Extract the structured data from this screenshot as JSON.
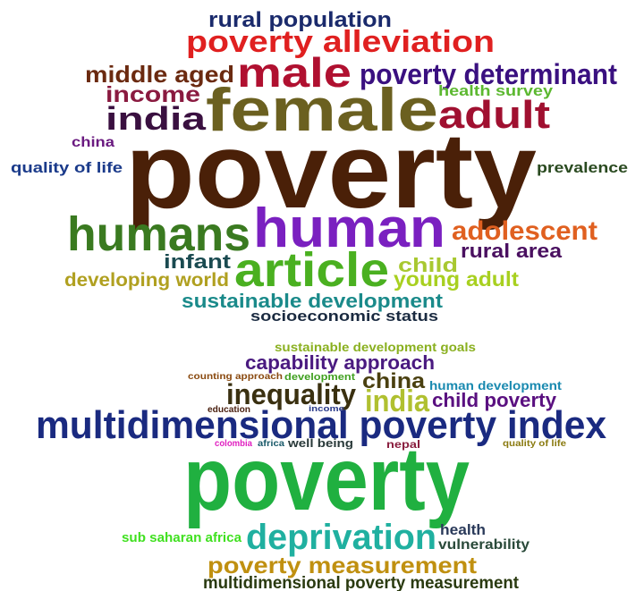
{
  "word_clouds": [
    {
      "words": [
        {
          "text": "rural population",
          "color": "#1a2a6c"
        },
        {
          "text": "poverty alleviation",
          "color": "#e02020"
        },
        {
          "text": "male",
          "color": "#b01030"
        },
        {
          "text": "middle aged",
          "color": "#6b2a10"
        },
        {
          "text": "poverty determinant",
          "color": "#3a1080"
        },
        {
          "text": "income",
          "color": "#8a1a40"
        },
        {
          "text": "health survey",
          "color": "#5cb830"
        },
        {
          "text": "female",
          "color": "#6b6020"
        },
        {
          "text": "india",
          "color": "#3a1040"
        },
        {
          "text": "adult",
          "color": "#a01030"
        },
        {
          "text": "china",
          "color": "#6a1a80"
        },
        {
          "text": "poverty",
          "color": "#4a2008"
        },
        {
          "text": "quality of life",
          "color": "#1a3a8a"
        },
        {
          "text": "prevalence",
          "color": "#2a4a20"
        },
        {
          "text": "humans",
          "color": "#3a7a20"
        },
        {
          "text": "human",
          "color": "#7a20c0"
        },
        {
          "text": "adolescent",
          "color": "#e06020"
        },
        {
          "text": "rural area",
          "color": "#4a1060"
        },
        {
          "text": "infant",
          "color": "#1a4a50"
        },
        {
          "text": "article",
          "color": "#4ab020"
        },
        {
          "text": "child",
          "color": "#a8c830"
        },
        {
          "text": "developing world",
          "color": "#b0a020"
        },
        {
          "text": "young adult",
          "color": "#a8d020"
        },
        {
          "text": "sustainable development",
          "color": "#1a8a8a"
        },
        {
          "text": "socioeconomic status",
          "color": "#1a2a40"
        }
      ]
    },
    {
      "words": [
        {
          "text": "sustainable development goals",
          "color": "#8ab020"
        },
        {
          "text": "capability approach",
          "color": "#4a1a80"
        },
        {
          "text": "counting approach",
          "color": "#8a4a10"
        },
        {
          "text": "development",
          "color": "#40a020"
        },
        {
          "text": "china",
          "color": "#4a4010"
        },
        {
          "text": "human development",
          "color": "#1a8ab0"
        },
        {
          "text": "inequality",
          "color": "#3a3010"
        },
        {
          "text": "india",
          "color": "#b0c030"
        },
        {
          "text": "child poverty",
          "color": "#5a1080"
        },
        {
          "text": "education",
          "color": "#4a2010"
        },
        {
          "text": "income",
          "color": "#2a3a8a"
        },
        {
          "text": "multidimensional poverty index",
          "color": "#1a2a80"
        },
        {
          "text": "colombia",
          "color": "#e020c0"
        },
        {
          "text": "africa",
          "color": "#1a5a6a"
        },
        {
          "text": "well being",
          "color": "#2a3a3a"
        },
        {
          "text": "nepal",
          "color": "#8a2040"
        },
        {
          "text": "quality of life",
          "color": "#8a7a10"
        },
        {
          "text": "poverty",
          "color": "#20b040"
        },
        {
          "text": "health",
          "color": "#2a3a5a"
        },
        {
          "text": "sub saharan africa",
          "color": "#40e020"
        },
        {
          "text": "deprivation",
          "color": "#20b0a0"
        },
        {
          "text": "vulnerability",
          "color": "#2a4a3a"
        },
        {
          "text": "poverty measurement",
          "color": "#c09010"
        },
        {
          "text": "multidimensional poverty measurement",
          "color": "#2a3a10"
        }
      ]
    }
  ]
}
